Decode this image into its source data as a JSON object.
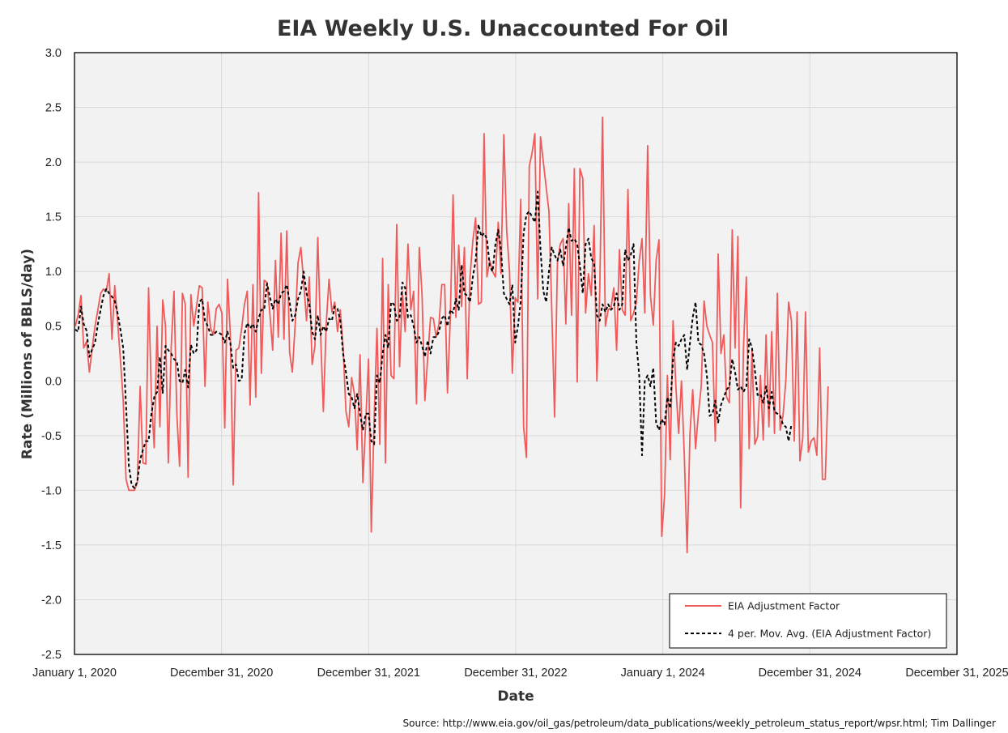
{
  "chart_data": {
    "type": "line",
    "title": "EIA Weekly U.S. Unaccounted For Oil",
    "xlabel": "Date",
    "ylabel": "Rate (Millions of BBLS/day)",
    "ylim": [
      -2.5,
      3.0
    ],
    "yticks": [
      "3.0",
      "2.5",
      "2.0",
      "1.5",
      "1.0",
      "0.5",
      "0.0",
      "-0.5",
      "-1.0",
      "-1.5",
      "-2.0",
      "-2.5"
    ],
    "xlim": [
      "2020-01-01",
      "2025-12-31"
    ],
    "xticks": [
      "January 1, 2020",
      "December 31, 2020",
      "December 31, 2021",
      "December 31, 2022",
      "January 1, 2024",
      "December 31, 2024",
      "December 31, 2025"
    ],
    "grid": true,
    "legend_position": "bottom-right",
    "series_colors": {
      "factor": "#f05a5a",
      "avg": "#000000"
    },
    "series": [
      {
        "name": "EIA Adjustment Factor",
        "style": "solid",
        "x_start": "2020-01-03",
        "x_step_days": 7,
        "values": [
          0.5,
          0.6,
          0.78,
          0.3,
          0.36,
          0.08,
          0.3,
          0.5,
          0.65,
          0.8,
          0.84,
          0.82,
          0.98,
          0.38,
          0.87,
          0.55,
          0.2,
          -0.18,
          -0.9,
          -1.0,
          -1.0,
          -1.0,
          -0.93,
          -0.05,
          -0.75,
          -0.76,
          0.85,
          -0.15,
          -0.61,
          0.5,
          -0.42,
          0.74,
          0.5,
          -0.75,
          0.3,
          0.82,
          -0.3,
          -0.78,
          0.8,
          0.7,
          -0.88,
          0.79,
          0.5,
          0.68,
          0.87,
          0.85,
          -0.05,
          0.72,
          0.48,
          0.42,
          0.66,
          0.7,
          0.62,
          -0.43,
          0.93,
          0.42,
          -0.95,
          0.28,
          0.3,
          0.48,
          0.7,
          0.82,
          -0.22,
          0.88,
          -0.15,
          1.72,
          0.07,
          0.92,
          0.9,
          0.62,
          0.28,
          1.1,
          0.4,
          1.35,
          0.38,
          1.37,
          0.26,
          0.08,
          0.52,
          1.08,
          1.22,
          0.9,
          0.55,
          0.95,
          0.15,
          0.32,
          1.31,
          0.42,
          -0.28,
          0.52,
          0.93,
          0.63,
          0.72,
          0.45,
          0.65,
          0.3,
          -0.28,
          -0.42,
          0.03,
          -0.12,
          -0.63,
          0.24,
          -0.93,
          -0.38,
          0.2,
          -1.38,
          -0.35,
          0.48,
          -0.58,
          1.12,
          -0.75,
          0.88,
          0.05,
          0.02,
          1.43,
          0.13,
          0.82,
          0.45,
          1.25,
          0.65,
          0.82,
          -0.21,
          1.22,
          0.78,
          -0.18,
          0.22,
          0.58,
          0.57,
          0.4,
          0.52,
          0.88,
          0.88,
          -0.11,
          0.58,
          1.7,
          0.58,
          1.24,
          0.68,
          1.22,
          0.02,
          0.95,
          1.28,
          1.49,
          0.7,
          0.72,
          2.26,
          0.95,
          1.1,
          1.0,
          0.95,
          1.45,
          0.98,
          2.25,
          1.38,
          1.0,
          0.07,
          0.76,
          0.72,
          1.66,
          -0.42,
          -0.7,
          1.96,
          2.08,
          2.26,
          0.75,
          2.23,
          2.0,
          1.77,
          1.55,
          0.65,
          -0.33,
          1.08,
          1.25,
          1.3,
          0.52,
          1.62,
          0.6,
          1.94,
          -0.01,
          1.94,
          1.85,
          0.62,
          0.98,
          0.78,
          1.42,
          0.0,
          0.8,
          2.41,
          0.5,
          0.65,
          0.67,
          0.85,
          0.28,
          1.2,
          0.65,
          0.6,
          1.75,
          0.55,
          0.62,
          0.72,
          1.1,
          1.3,
          0.62,
          2.15,
          0.78,
          0.51,
          1.1,
          1.29,
          -1.42,
          -1.05,
          0.05,
          -0.72,
          0.55,
          -0.05,
          -0.48,
          0.0,
          -0.68,
          -1.57,
          -0.48,
          -0.08,
          -0.62,
          -0.3,
          -0.05,
          0.73,
          0.5,
          0.42,
          0.35,
          -0.55,
          1.16,
          0.25,
          0.42,
          -0.15,
          -0.2,
          1.38,
          0.3,
          1.32,
          -1.16,
          0.3,
          0.95,
          -0.62,
          0.28,
          -0.58,
          -0.51,
          0.05,
          -0.54,
          0.42,
          -0.42,
          0.45,
          -0.48,
          0.8,
          -0.45,
          -0.32,
          0.0,
          0.72,
          0.55,
          -0.55,
          0.63,
          -0.73,
          -0.52,
          0.63,
          -0.65,
          -0.55,
          -0.52,
          -0.68,
          0.3,
          -0.9,
          -0.9,
          -0.05
        ]
      },
      {
        "name": "4 per. Mov. Avg. (EIA Adjustment Factor)",
        "style": "dashed",
        "x_start": "2020-01-03",
        "x_step_days": 7,
        "values": [
          0.47,
          0.45,
          0.68,
          0.52,
          0.46,
          0.22,
          0.29,
          0.35,
          0.52,
          0.65,
          0.78,
          0.84,
          0.8,
          0.77,
          0.73,
          0.62,
          0.47,
          0.3,
          -0.23,
          -0.78,
          -0.95,
          -0.98,
          -0.92,
          -0.72,
          -0.63,
          -0.55,
          -0.55,
          -0.3,
          -0.15,
          -0.1,
          0.22,
          -0.11,
          0.32,
          0.28,
          0.25,
          0.2,
          0.18,
          0.0,
          -0.02,
          0.1,
          -0.06,
          0.33,
          0.25,
          0.28,
          0.72,
          0.75,
          0.55,
          0.5,
          0.42,
          0.42,
          0.45,
          0.44,
          0.42,
          0.35,
          0.45,
          0.35,
          0.12,
          0.15,
          0.0,
          0.01,
          0.43,
          0.53,
          0.48,
          0.52,
          0.45,
          0.57,
          0.65,
          0.65,
          0.89,
          0.77,
          0.66,
          0.75,
          0.7,
          0.8,
          0.82,
          0.88,
          0.72,
          0.55,
          0.6,
          0.75,
          0.82,
          1.0,
          0.8,
          0.7,
          0.45,
          0.38,
          0.6,
          0.42,
          0.5,
          0.45,
          0.57,
          0.55,
          0.68,
          0.66,
          0.55,
          0.25,
          0.08,
          -0.12,
          -0.15,
          -0.25,
          -0.12,
          -0.3,
          -0.45,
          -0.3,
          -0.3,
          -0.55,
          -0.58,
          0.05,
          -0.02,
          0.25,
          0.42,
          0.3,
          0.72,
          0.7,
          0.55,
          0.58,
          0.9,
          0.85,
          0.58,
          0.6,
          0.5,
          0.35,
          0.4,
          0.32,
          0.22,
          0.37,
          0.25,
          0.4,
          0.4,
          0.45,
          0.57,
          0.6,
          0.5,
          0.65,
          0.62,
          0.75,
          0.65,
          1.06,
          0.8,
          0.78,
          0.72,
          0.95,
          1.1,
          1.43,
          1.32,
          1.35,
          1.3,
          1.05,
          1.0,
          1.25,
          1.38,
          1.2,
          0.8,
          0.75,
          0.7,
          0.88,
          0.35,
          0.5,
          0.73,
          1.35,
          1.52,
          1.55,
          1.5,
          1.45,
          1.73,
          1.2,
          0.82,
          0.72,
          1.0,
          1.22,
          1.15,
          1.1,
          1.2,
          1.05,
          1.22,
          1.4,
          1.28,
          1.3,
          1.25,
          1.05,
          0.8,
          1.25,
          1.3,
          1.12,
          1.08,
          0.6,
          0.55,
          0.7,
          0.63,
          0.7,
          0.65,
          0.68,
          0.8,
          0.65,
          0.7,
          1.2,
          1.1,
          1.15,
          1.25,
          0.35,
          0.05,
          -0.68,
          0.0,
          0.05,
          -0.05,
          0.12,
          -0.38,
          -0.45,
          -0.35,
          -0.4,
          -0.15,
          -0.25,
          0.2,
          0.35,
          0.32,
          0.38,
          0.42,
          0.1,
          0.35,
          0.58,
          0.72,
          0.35,
          0.33,
          0.25,
          0.05,
          -0.32,
          -0.3,
          -0.18,
          -0.38,
          -0.22,
          -0.15,
          -0.08,
          -0.05,
          0.2,
          0.08,
          -0.08,
          -0.05,
          -0.1,
          -0.05,
          0.38,
          0.3,
          0.1,
          -0.13,
          -0.12,
          -0.2,
          -0.05,
          -0.25,
          -0.1,
          -0.28,
          -0.3,
          -0.32,
          -0.4,
          -0.42,
          -0.55,
          -0.4
        ]
      }
    ],
    "source": "Source: http://www.eia.gov/oil_gas/petroleum/data_publications/weekly_petroleum_status_report/wpsr.html; Tim Dallinger"
  }
}
